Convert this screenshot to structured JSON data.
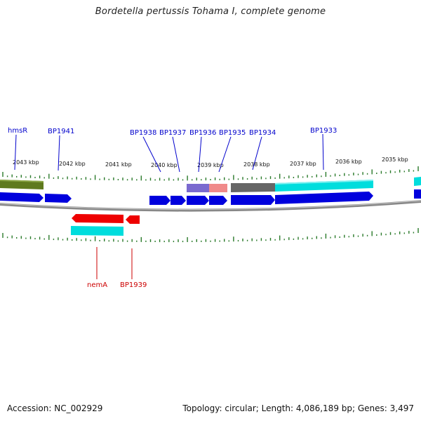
{
  "title": "Bordetella pertussis Tohama I, complete genome",
  "footer": {
    "accession": "Accession: NC_002929",
    "genome_info": "Topology: circular; Length: 4,086,189 bp; Genes: 3,497"
  },
  "colors": {
    "forward_label": "#0000cc",
    "reverse_label": "#cc0000",
    "cds_blue": "#0000dd",
    "cds_red": "#ee0000",
    "tick": "#2a7a2a",
    "backbone": "#888888",
    "olive": "#5f7a1e",
    "cyan": "#00dddd",
    "purple": "#7a6acf",
    "pink": "#f08a8a",
    "gray": "#666666"
  },
  "kbp_labels": [
    "2043 kbp",
    "2042 kbp",
    "2041 kbp",
    "2040 kbp",
    "2039 kbp",
    "2038 kbp",
    "2037 kbp",
    "2036 kbp",
    "2035 kbp"
  ],
  "forward_genes": [
    "hmsR",
    "BP1941",
    "BP1938",
    "BP1937",
    "BP1936",
    "BP1935",
    "BP1934",
    "BP1933"
  ],
  "reverse_genes": [
    "nemA",
    "BP1939"
  ]
}
